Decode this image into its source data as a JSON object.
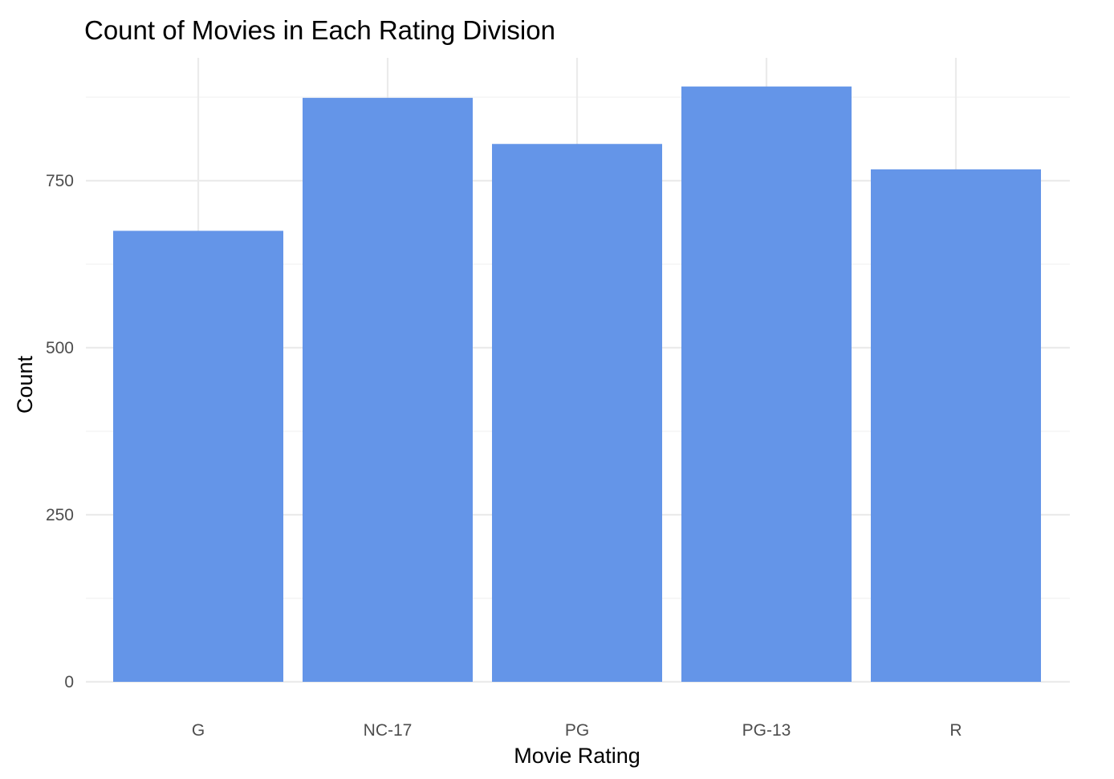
{
  "chart_data": {
    "type": "bar",
    "title": "Count of Movies in Each Rating Division",
    "xlabel": "Movie Rating",
    "ylabel": "Count",
    "categories": [
      "G",
      "NC-17",
      "PG",
      "PG-13",
      "R"
    ],
    "values": [
      675,
      874,
      805,
      891,
      767
    ],
    "ylim": [
      0,
      930
    ],
    "yticks": [
      0,
      250,
      500,
      750
    ],
    "grid": true,
    "legend": "none",
    "bar_color": "#6495E8"
  }
}
